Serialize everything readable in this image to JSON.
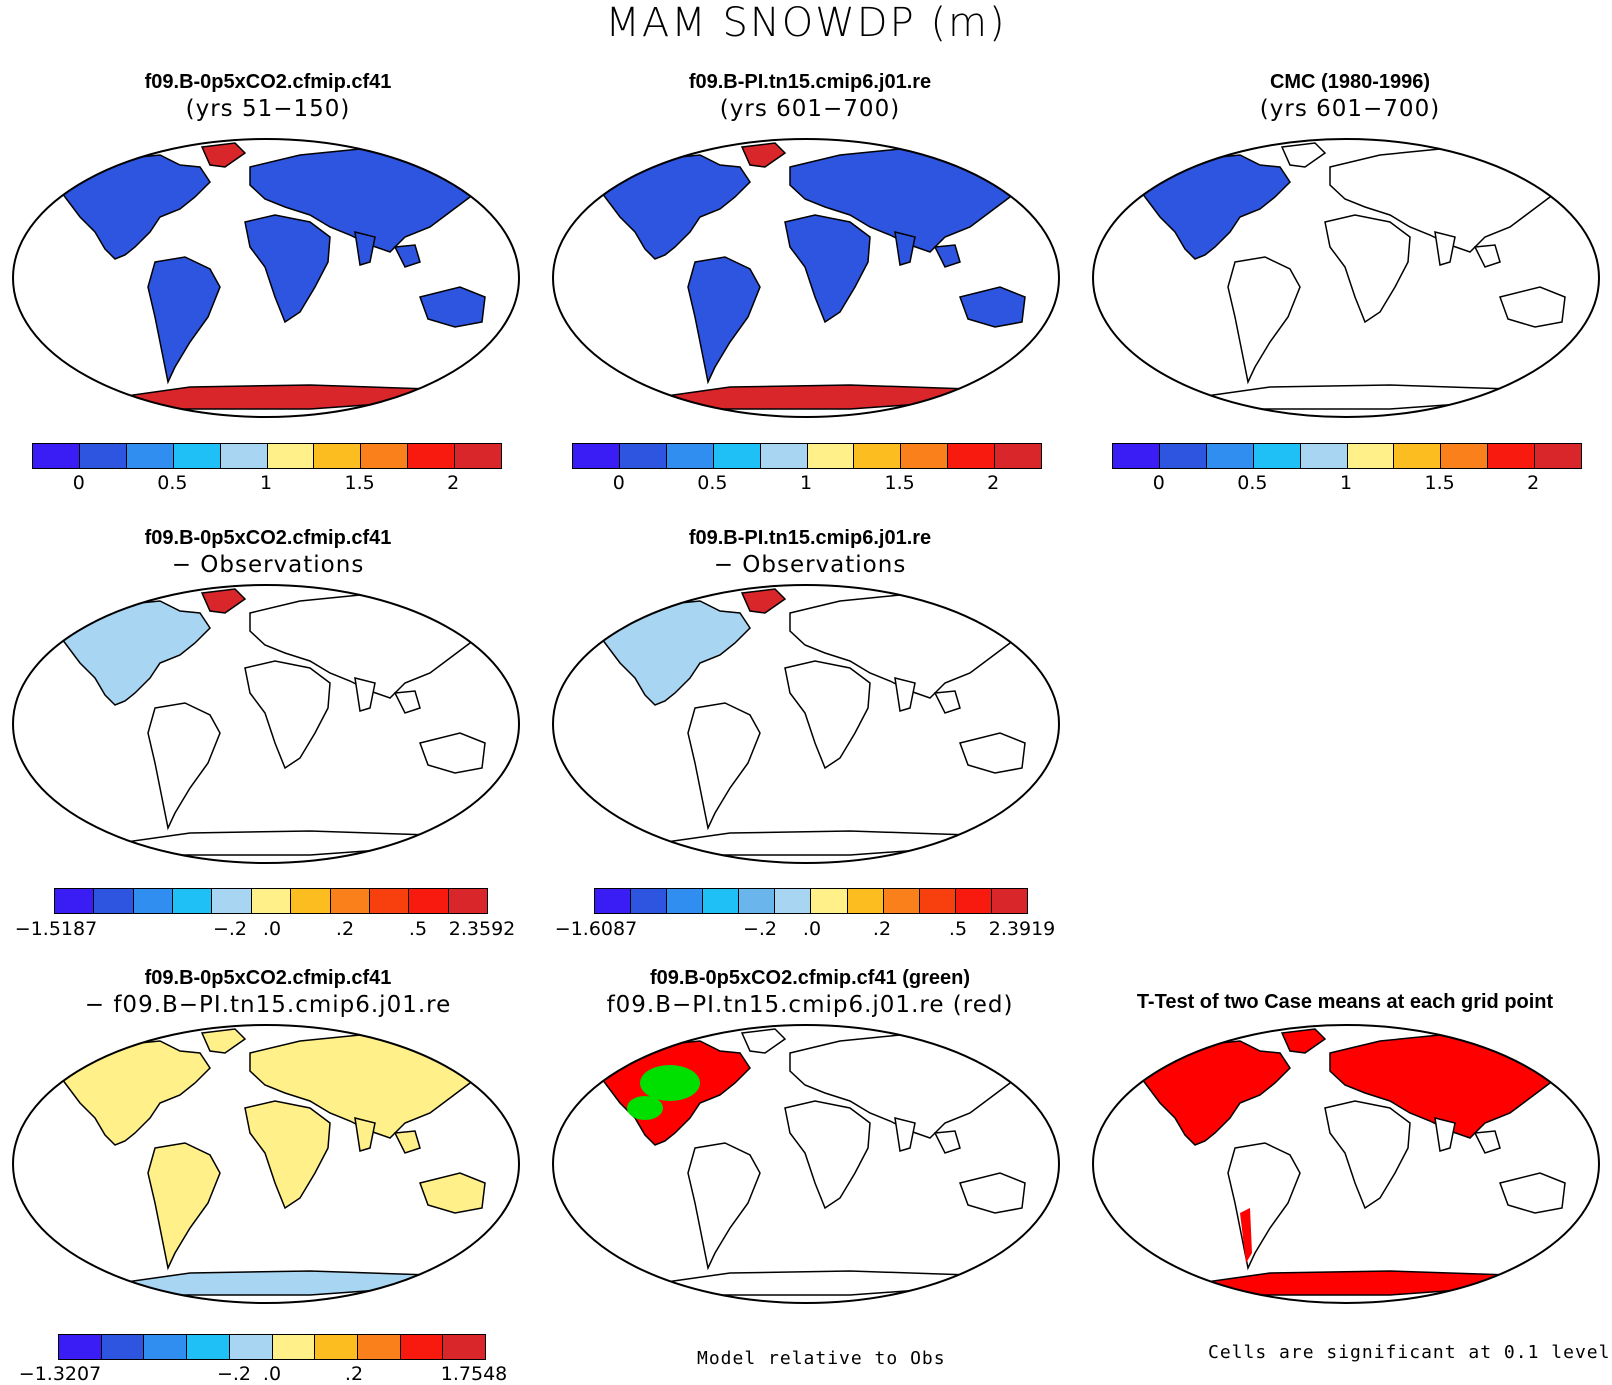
{
  "title": "MAM SNOWDP (m)",
  "panels": {
    "p1": {
      "title": "f09.B-0p5xCO2.cfmip.cf41",
      "subtitle": "(yrs 51−150)"
    },
    "p2": {
      "title": "f09.B-PI.tn15.cmip6.j01.re",
      "subtitle": "(yrs 601−700)"
    },
    "p3": {
      "title": "CMC (1980-1996)",
      "subtitle": "(yrs 601−700)"
    },
    "p4": {
      "title": "f09.B-0p5xCO2.cfmip.cf41",
      "subtitle": "− Observations"
    },
    "p5": {
      "title": "f09.B-PI.tn15.cmip6.j01.re",
      "subtitle": "− Observations"
    },
    "p7": {
      "title": "f09.B-0p5xCO2.cfmip.cf41",
      "subtitle": "− f09.B−PI.tn15.cmip6.j01.re"
    },
    "p8": {
      "title": "f09.B-0p5xCO2.cfmip.cf41 (green)",
      "subtitle": "f09.B−PI.tn15.cmip6.j01.re (red)"
    },
    "p9": {
      "title": "T-Test of two Case means at each grid point",
      "subtitle": ""
    }
  },
  "colorbars": {
    "abs": {
      "colors": [
        "#3a1df5",
        "#2d55e0",
        "#2f8ef0",
        "#1ec0f5",
        "#a8d6f2",
        "#fff08a",
        "#fbbd1f",
        "#f9801a",
        "#f8190f",
        "#d8262b"
      ],
      "labels": [
        "0",
        "0.5",
        "1",
        "1.5",
        "2"
      ]
    },
    "diff_obs_1": {
      "colors": [
        "#3a1df5",
        "#2d55e0",
        "#2f8ef0",
        "#1ec0f5",
        "#a8d6f2",
        "#fff08a",
        "#fbbd1f",
        "#f9801a",
        "#f8400f",
        "#f8190f",
        "#d8262b"
      ],
      "labels": [
        "−1.5187",
        "−.2",
        ".0",
        ".2",
        ".5",
        "2.3592"
      ]
    },
    "diff_obs_2": {
      "colors": [
        "#3a1df5",
        "#2d55e0",
        "#2f8ef0",
        "#1ec0f5",
        "#69b5ec",
        "#a8d6f2",
        "#fff08a",
        "#fbbd1f",
        "#f9801a",
        "#f8400f",
        "#f8190f",
        "#d8262b"
      ],
      "labels": [
        "−1.6087",
        "−.2",
        ".0",
        ".2",
        ".5",
        "2.3919"
      ]
    },
    "diff_case": {
      "colors": [
        "#3a1df5",
        "#2d55e0",
        "#2f8ef0",
        "#1ec0f5",
        "#a8d6f2",
        "#fff08a",
        "#fbbd1f",
        "#f9801a",
        "#f8190f",
        "#d8262b"
      ],
      "labels": [
        "−1.3207",
        "−.2",
        ".0",
        ".2",
        "1.7548"
      ]
    }
  },
  "footnotes": {
    "model_rel": "Model relative to Obs",
    "cells_sig": "Cells are significant at 0.1 level"
  },
  "map_fills": {
    "snow_low": "#2d55e0",
    "snow_high": "#d8262b",
    "diff_pos": "#fff08a",
    "diff_neg": "#a8d6f2",
    "sig_red": "#ff0000",
    "green": "#00e000"
  }
}
